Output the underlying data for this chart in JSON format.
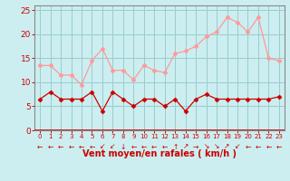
{
  "hours": [
    0,
    1,
    2,
    3,
    4,
    5,
    6,
    7,
    8,
    9,
    10,
    11,
    12,
    13,
    14,
    15,
    16,
    17,
    18,
    19,
    20,
    21,
    22,
    23
  ],
  "wind_avg": [
    6.5,
    8,
    6.5,
    6.5,
    6.5,
    8,
    4,
    8,
    6.5,
    5,
    6.5,
    6.5,
    5,
    6.5,
    4,
    6.5,
    7.5,
    6.5,
    6.5,
    6.5,
    6.5,
    6.5,
    6.5,
    7
  ],
  "wind_gust": [
    13.5,
    13.5,
    11.5,
    11.5,
    9.5,
    14.5,
    17,
    12.5,
    12.5,
    10.5,
    13.5,
    12.5,
    12,
    16,
    16.5,
    17.5,
    19.5,
    20.5,
    23.5,
    22.5,
    20.5,
    23.5,
    15,
    14.5
  ],
  "color_avg": "#cc0000",
  "color_gust": "#ff9999",
  "bg_color": "#cceef0",
  "grid_color": "#99cccc",
  "xlabel": "Vent moyen/en rafales ( km/h )",
  "xlabel_color": "#cc0000",
  "tick_color": "#cc0000",
  "axis_color": "#888888",
  "ylim": [
    0,
    26
  ],
  "yticks": [
    0,
    5,
    10,
    15,
    20,
    25
  ],
  "marker": "D",
  "marker_size": 2.5,
  "line_width": 0.9,
  "arrow_chars": [
    "←",
    "←",
    "←",
    "←",
    "←",
    "←",
    "↙",
    "↙",
    "↓",
    "←",
    "←",
    "←",
    "←",
    "↑",
    "↗",
    "→",
    "↘",
    "↘",
    "↗",
    "↙",
    "←",
    "←",
    "←",
    "←"
  ]
}
